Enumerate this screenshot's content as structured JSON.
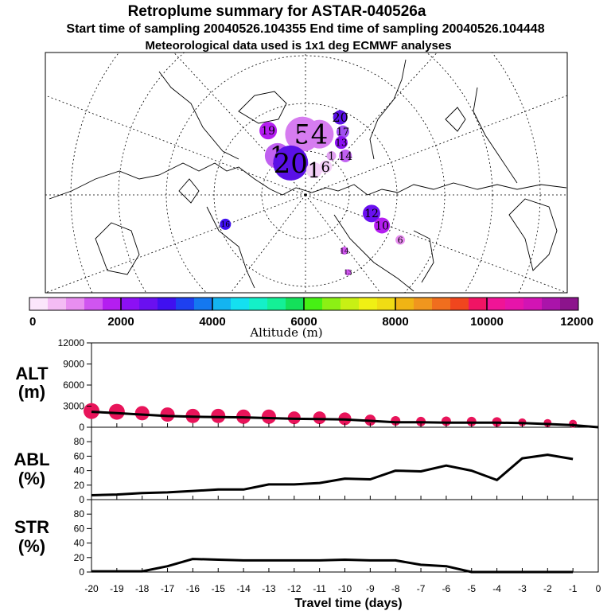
{
  "header": {
    "title": "Retroplume summary for ASTAR-040526a",
    "line2": "Start time of sampling 20040526.104355     End time of sampling 20040526.104448",
    "line3": "Meteorological data used is 1x1 deg ECMWF analyses"
  },
  "colors": {
    "line": "#000000",
    "dots": "#e8145a",
    "colorbar": [
      "#fbe6fb",
      "#f4bcf4",
      "#e88ef0",
      "#d055f0",
      "#b41ef0",
      "#8c10f4",
      "#6a10f0",
      "#4010f0",
      "#1e40f0",
      "#1478f0",
      "#14b4f0",
      "#14e0f0",
      "#14f0c8",
      "#14f096",
      "#14e05a",
      "#46f014",
      "#8cf014",
      "#c8f014",
      "#f0f014",
      "#f0dc14",
      "#f0b414",
      "#f0961e",
      "#f06e1e",
      "#f0461e",
      "#f01464",
      "#f01496",
      "#e614aa",
      "#d214b4",
      "#aa14aa",
      "#8c148c"
    ]
  },
  "map": {
    "labels": [
      {
        "t": "20",
        "ax": 0.565,
        "ay": 0.27,
        "s": 16,
        "r": 9,
        "c": "#5a10e6"
      },
      {
        "t": "19",
        "ax": 0.427,
        "ay": 0.325,
        "s": 14,
        "r": 11,
        "c": "#b41ef0"
      },
      {
        "t": "5",
        "ax": 0.493,
        "ay": 0.34,
        "s": 34,
        "r": 22,
        "c": "#d67cf0"
      },
      {
        "t": "4",
        "ax": 0.525,
        "ay": 0.34,
        "s": 34,
        "r": 18,
        "c": "#d67cf0"
      },
      {
        "t": "17",
        "ax": 0.57,
        "ay": 0.33,
        "s": 13,
        "r": 8,
        "c": "#a050f0"
      },
      {
        "t": "13",
        "ax": 0.567,
        "ay": 0.375,
        "s": 12,
        "r": 8,
        "c": "#8c10f4"
      },
      {
        "t": "1",
        "ax": 0.445,
        "ay": 0.43,
        "s": 32,
        "r": 16,
        "c": "#c060f0"
      },
      {
        "t": "20",
        "ax": 0.47,
        "ay": 0.46,
        "s": 34,
        "r": 22,
        "c": "#5a10e6"
      },
      {
        "t": "1",
        "ax": 0.548,
        "ay": 0.43,
        "s": 13,
        "r": 6,
        "c": "#e0a0f0"
      },
      {
        "t": "14",
        "ax": 0.575,
        "ay": 0.43,
        "s": 14,
        "r": 8,
        "c": "#c060f0"
      },
      {
        "t": "6",
        "ax": 0.537,
        "ay": 0.475,
        "s": 18,
        "r": 8,
        "c": "#f4d0f8"
      },
      {
        "t": "1",
        "ax": 0.515,
        "ay": 0.49,
        "s": 26,
        "r": 10,
        "c": "#f4d0f8"
      },
      {
        "t": "12",
        "ax": 0.625,
        "ay": 0.67,
        "s": 14,
        "r": 11,
        "c": "#6a10f0"
      },
      {
        "t": "10",
        "ax": 0.645,
        "ay": 0.72,
        "s": 14,
        "r": 10,
        "c": "#b41ef0"
      },
      {
        "t": "16",
        "ax": 0.345,
        "ay": 0.715,
        "s": 9,
        "r": 7,
        "c": "#4010f0"
      },
      {
        "t": "6",
        "ax": 0.68,
        "ay": 0.78,
        "s": 11,
        "r": 6,
        "c": "#e88ef0"
      },
      {
        "t": "14",
        "ax": 0.573,
        "ay": 0.825,
        "s": 9,
        "r": 5,
        "c": "#d055f0"
      },
      {
        "t": "13",
        "ax": 0.58,
        "ay": 0.915,
        "s": 8,
        "r": 4,
        "c": "#d055f0"
      }
    ]
  },
  "colorbar": {
    "label": "Altitude (m)",
    "min": 0,
    "max": 12000,
    "tick_labels": [
      "0",
      "2000",
      "4000",
      "6000",
      "8000",
      "10000",
      "12000"
    ]
  },
  "panels": {
    "alt": {
      "label1": "ALT",
      "label2": "(m)"
    },
    "abl": {
      "label1": "ABL",
      "label2": "(%)"
    },
    "str": {
      "label1": "STR",
      "label2": "(%)"
    }
  },
  "xaxis": {
    "label": "Travel time (days)",
    "tick_labels": [
      "-20",
      "-19",
      "-18",
      "-17",
      "-16",
      "-15",
      "-14",
      "-13",
      "-12",
      "-11",
      "-10",
      "-9",
      "-8",
      "-7",
      "-6",
      "-5",
      "-4",
      "-3",
      "-2",
      "-1",
      "0"
    ]
  },
  "chart_data": [
    {
      "type": "line",
      "name": "ALT",
      "ylabel": "ALT (m)",
      "ylim": [
        0,
        12000
      ],
      "yticks": [
        "0",
        "3000",
        "6000",
        "9000",
        "12000"
      ],
      "x": [
        -20,
        -19,
        -18,
        -17,
        -16,
        -15,
        -14,
        -13,
        -12,
        -11,
        -10,
        -9,
        -8,
        -7,
        -6,
        -5,
        -4,
        -3,
        -2,
        -1,
        0
      ],
      "values": [
        2200,
        2000,
        1800,
        1600,
        1500,
        1450,
        1400,
        1300,
        1200,
        1150,
        1100,
        900,
        700,
        700,
        650,
        650,
        650,
        600,
        450,
        300,
        0
      ],
      "dots": {
        "x": [
          -20,
          -19,
          -18,
          -17,
          -16,
          -15,
          -14,
          -13,
          -12,
          -11,
          -10,
          -9,
          -8,
          -7,
          -6,
          -5,
          -4,
          -3,
          -2,
          -1
        ],
        "values": [
          2300,
          2200,
          2000,
          1800,
          1600,
          1600,
          1500,
          1500,
          1350,
          1350,
          1200,
          1000,
          900,
          800,
          850,
          800,
          750,
          700,
          600,
          500
        ],
        "sizes": [
          10,
          10,
          9,
          9,
          9,
          9,
          9,
          9,
          8,
          8,
          8,
          7,
          6,
          6,
          6,
          6,
          6,
          5,
          5,
          5
        ]
      }
    },
    {
      "type": "line",
      "name": "ABL",
      "ylabel": "ABL (%)",
      "ylim": [
        0,
        100
      ],
      "yticks": [
        "0",
        "20",
        "40",
        "60",
        "80"
      ],
      "x": [
        -20,
        -19,
        -18,
        -17,
        -16,
        -15,
        -14,
        -13,
        -12,
        -11,
        -10,
        -9,
        -8,
        -7,
        -6,
        -5,
        -4,
        -3,
        -2,
        -1
      ],
      "values": [
        6,
        7,
        9,
        10,
        12,
        14,
        14,
        21,
        21,
        23,
        29,
        28,
        40,
        39,
        47,
        40,
        27,
        57,
        62,
        56
      ]
    },
    {
      "type": "line",
      "name": "STR",
      "ylabel": "STR (%)",
      "ylim": [
        0,
        100
      ],
      "yticks": [
        "0",
        "20",
        "40",
        "60",
        "80"
      ],
      "x": [
        -20,
        -19,
        -18,
        -17,
        -16,
        -15,
        -14,
        -13,
        -12,
        -11,
        -10,
        -9,
        -8,
        -7,
        -6,
        -5,
        -4,
        -3,
        -2,
        -1
      ],
      "values": [
        1,
        1,
        1,
        8,
        18,
        17,
        16,
        16,
        16,
        16,
        17,
        16,
        16,
        10,
        8,
        0,
        0,
        0,
        0,
        0
      ]
    }
  ]
}
